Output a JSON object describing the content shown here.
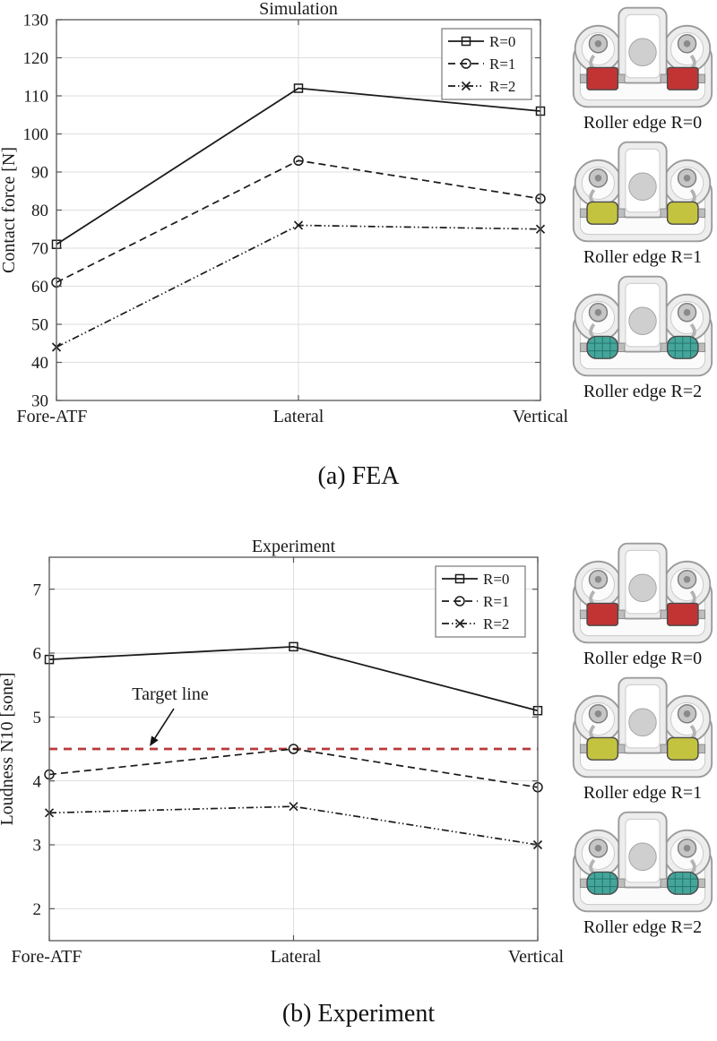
{
  "figure": {
    "caption_a": "(a) FEA",
    "caption_b": "(b) Experiment"
  },
  "rollers": {
    "items": [
      {
        "label": "Roller edge R=0",
        "color": "#c23434"
      },
      {
        "label": "Roller edge R=1",
        "color": "#c3c340"
      },
      {
        "label": "Roller edge R=2",
        "color": "#45a59a"
      }
    ]
  },
  "chart_data": [
    {
      "type": "line",
      "title": "Simulation",
      "xlabel": "",
      "ylabel": "Contact force [N]",
      "categories": [
        "Fore-ATF",
        "Lateral",
        "Vertical"
      ],
      "series": [
        {
          "name": "R=0",
          "values": [
            71,
            112,
            106
          ],
          "linestyle": "solid",
          "marker": "square"
        },
        {
          "name": "R=1",
          "values": [
            61,
            93,
            83
          ],
          "linestyle": "dashed",
          "marker": "circle"
        },
        {
          "name": "R=2",
          "values": [
            44,
            76,
            75
          ],
          "linestyle": "dashdot",
          "marker": "x"
        }
      ],
      "ylim": [
        30,
        130
      ],
      "yticks": [
        30,
        40,
        50,
        60,
        70,
        80,
        90,
        100,
        110,
        120,
        130
      ],
      "grid": true,
      "legend_position": "top-right",
      "line_color": "#1a1a1a"
    },
    {
      "type": "line",
      "title": "Experiment",
      "xlabel": "",
      "ylabel": "Loudness N10 [sone]",
      "categories": [
        "Fore-ATF",
        "Lateral",
        "Vertical"
      ],
      "series": [
        {
          "name": "R=0",
          "values": [
            5.9,
            6.1,
            5.1
          ],
          "linestyle": "solid",
          "marker": "square"
        },
        {
          "name": "R=1",
          "values": [
            4.1,
            4.5,
            3.9
          ],
          "linestyle": "dashed",
          "marker": "circle"
        },
        {
          "name": "R=2",
          "values": [
            3.5,
            3.6,
            3.0
          ],
          "linestyle": "dashdot",
          "marker": "x"
        }
      ],
      "ylim": [
        1.5,
        7.5
      ],
      "yticks": [
        2,
        3,
        4,
        5,
        6,
        7
      ],
      "grid": true,
      "legend_position": "top-right",
      "line_color": "#1a1a1a",
      "target_line": {
        "value": 4.5,
        "label": "Target line",
        "color": "#b83a3a"
      }
    }
  ]
}
